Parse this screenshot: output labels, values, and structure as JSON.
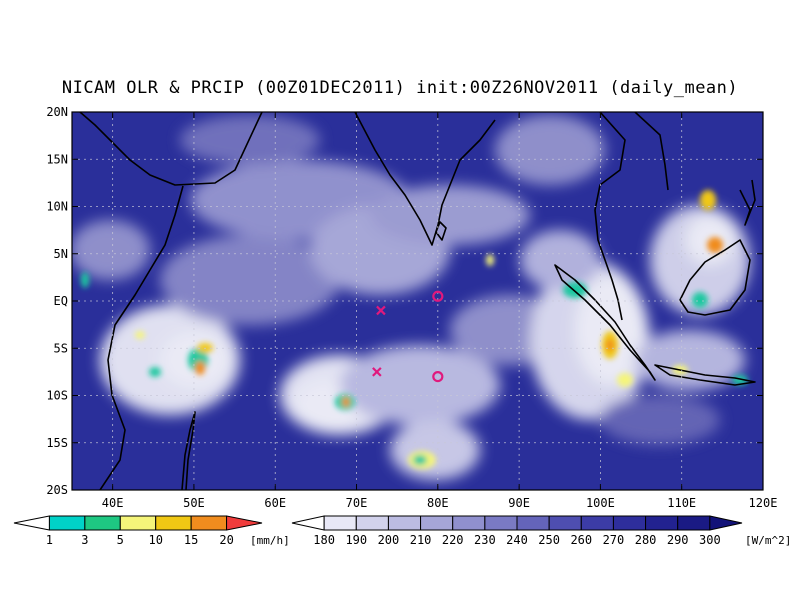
{
  "title": "NICAM OLR & PRCIP (00Z01DEC2011) init:00Z26NOV2011 (daily_mean)",
  "map": {
    "lat_ticks": [
      "20N",
      "15N",
      "10N",
      "5N",
      "EQ",
      "5S",
      "10S",
      "15S",
      "20S"
    ],
    "lon_ticks": [
      "40E",
      "50E",
      "60E",
      "70E",
      "80E",
      "90E",
      "100E",
      "110E",
      "120E"
    ],
    "colors": {
      "ocean_clear": "#2a2f9a",
      "frame": "#000000",
      "coastline": "#000000"
    }
  },
  "markers": [
    {
      "symbol": "x",
      "lon": 73,
      "lat": -1.0,
      "color": "#e0197d"
    },
    {
      "symbol": "x",
      "lon": 72.5,
      "lat": -7.5,
      "color": "#e0197d"
    },
    {
      "symbol": "o",
      "lon": 80,
      "lat": 0.5,
      "color": "#e0197d"
    },
    {
      "symbol": "o",
      "lon": 80,
      "lat": -8.0,
      "color": "#e0197d"
    }
  ],
  "precip_legend": {
    "unit": "[mm/h]",
    "ticks": [
      "1",
      "3",
      "5",
      "10",
      "15",
      "20"
    ],
    "colors": [
      "#ffffff",
      "#00d2c8",
      "#1ec882",
      "#f5f57a",
      "#f0c814",
      "#f08c1e",
      "#f03c3c"
    ]
  },
  "olr_legend": {
    "unit": "[W/m^2]",
    "ticks": [
      "180",
      "190",
      "200",
      "210",
      "220",
      "230",
      "240",
      "250",
      "260",
      "270",
      "280",
      "290",
      "300"
    ],
    "colors": [
      "#ffffff",
      "#e8e8f6",
      "#d2d2ec",
      "#bcbce2",
      "#a6a6d8",
      "#9090ce",
      "#7a7ac4",
      "#6464ba",
      "#4e4eb0",
      "#3c3ca6",
      "#2e2e9c",
      "#222290",
      "#1a1a84",
      "#121278"
    ]
  }
}
